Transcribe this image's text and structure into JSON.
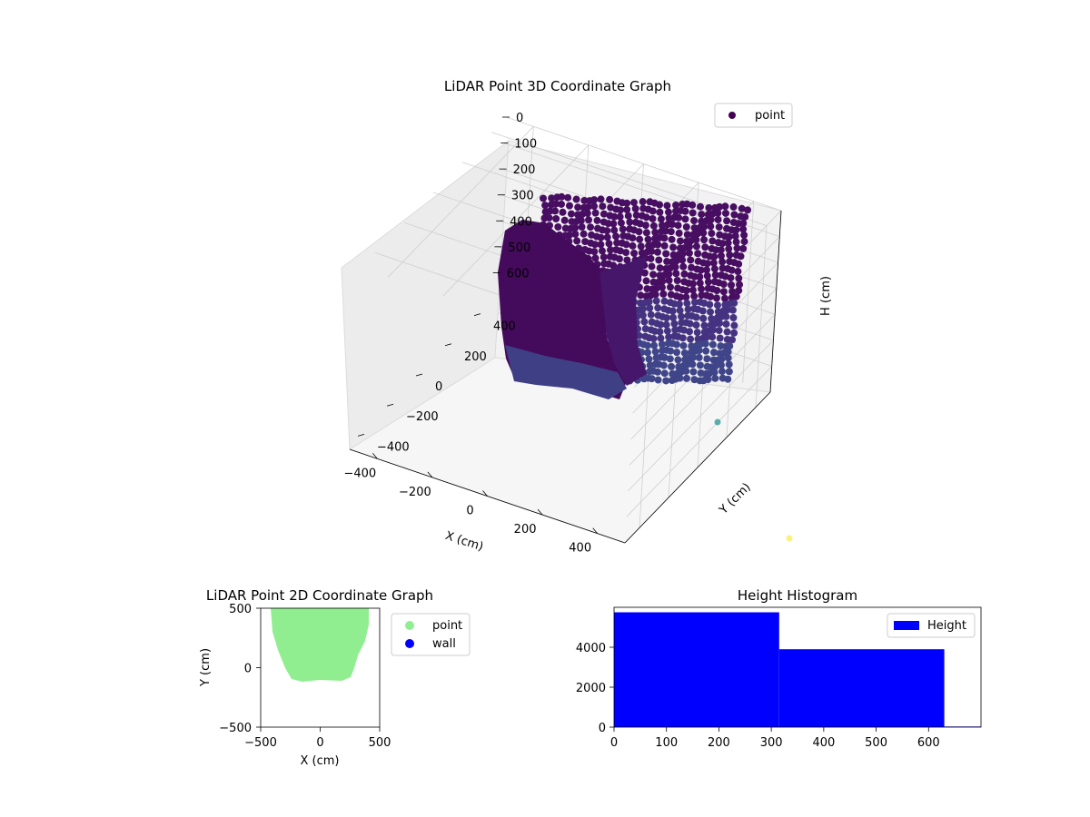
{
  "chart_data": [
    {
      "type": "scatter",
      "subtype": "3d",
      "title": "LiDAR Point 3D Coordinate Graph",
      "xlabel": "X (cm)",
      "ylabel": "Y (cm)",
      "zlabel": "H (cm)",
      "x_ticks": [
        "−400",
        "−200",
        "0",
        "200",
        "400"
      ],
      "y_ticks": [
        "400",
        "200",
        "0",
        "−200",
        "−400"
      ],
      "z_ticks": [
        "0",
        "100",
        "200",
        "300",
        "400",
        "500",
        "600"
      ],
      "xlim": [
        -500,
        500
      ],
      "ylim": [
        -500,
        500
      ],
      "zlim": [
        0,
        700
      ],
      "z_axis_inverted": true,
      "legend": [
        "point"
      ],
      "legend_position": "top-right",
      "grid": true,
      "colormap": "viridis",
      "colors": {
        "point": "#440154",
        "outlier_teal": "#21908c",
        "outlier_yellow": "#fde725"
      }
    },
    {
      "type": "scatter",
      "title": "LiDAR Point 2D Coordinate Graph",
      "xlabel": "X (cm)",
      "ylabel": "Y (cm)",
      "x_ticks": [
        "−500",
        "0",
        "500"
      ],
      "y_ticks": [
        "500",
        "0",
        "−500"
      ],
      "xlim": [
        -500,
        500
      ],
      "ylim": [
        -500,
        500
      ],
      "series": [
        {
          "name": "point",
          "color": "#90ee90"
        },
        {
          "name": "wall",
          "color": "#0000ff"
        }
      ],
      "legend_position": "outside-right"
    },
    {
      "type": "bar",
      "subtype": "histogram",
      "title": "Height Histogram",
      "bins": [
        {
          "start": 0,
          "end": 315,
          "count": 5750
        },
        {
          "start": 315,
          "end": 630,
          "count": 3900
        },
        {
          "start": 630,
          "end": 700,
          "count": 30
        }
      ],
      "x_ticks": [
        "0",
        "100",
        "200",
        "300",
        "400",
        "500",
        "600"
      ],
      "y_ticks": [
        "0",
        "2000",
        "4000"
      ],
      "xlim": [
        0,
        700
      ],
      "ylim": [
        0,
        6000
      ],
      "legend": [
        "Height"
      ],
      "legend_position": "top-right",
      "colors": {
        "bar": "#0000ff"
      }
    }
  ]
}
